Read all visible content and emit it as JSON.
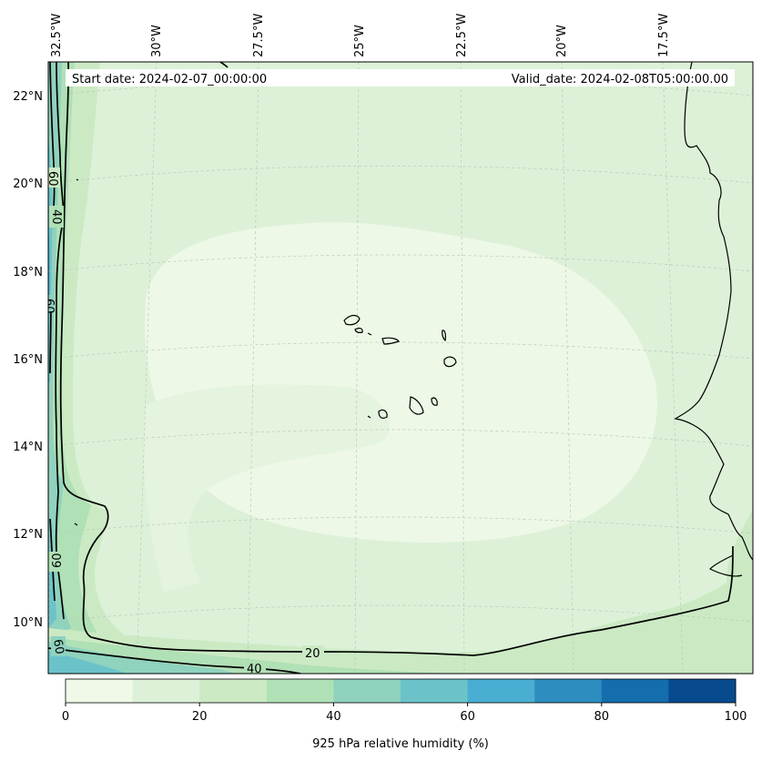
{
  "header": {
    "start_date": "Start date: 2024-02-07_00:00:00",
    "valid_date": "Valid_date: 2024-02-08T05:00:00.00"
  },
  "map": {
    "longitude_labels": [
      "32.5°W",
      "30°W",
      "27.5°W",
      "25°W",
      "22.5°W",
      "20°W",
      "17.5°W"
    ],
    "latitude_labels": [
      "22°N",
      "20°N",
      "18°N",
      "16°N",
      "14°N",
      "12°N",
      "10°N"
    ],
    "contour_labels": [
      "60",
      "40",
      "60",
      "60",
      "60",
      "20",
      "40"
    ],
    "field": "925 hPa relative humidity",
    "colors": {
      "coast": "#000000",
      "contour": "#000000",
      "grid": "#b8c8b8"
    }
  },
  "colorbar": {
    "ticks": [
      "0",
      "20",
      "40",
      "60",
      "80",
      "100"
    ],
    "label": "925 hPa relative humidity (%)",
    "levels": [
      0,
      10,
      20,
      30,
      40,
      50,
      60,
      70,
      80,
      90,
      100
    ],
    "colors": [
      "#f0f9e8",
      "#ddf1d8",
      "#cbeac4",
      "#b0e0b6",
      "#8fd2be",
      "#6bc3c9",
      "#4aaed2",
      "#2d8dbf",
      "#146dac",
      "#084a8e"
    ]
  }
}
